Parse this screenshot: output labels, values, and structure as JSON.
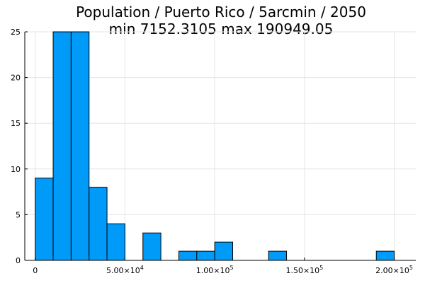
{
  "chart_data": {
    "type": "bar",
    "title": "Population / Puerto Rico / 5arcmin / 2050",
    "subtitle": "min 7152.3105  max 190949.05",
    "xlabel": "",
    "ylabel": "",
    "bin_width": 10000,
    "bins": [
      {
        "x0": 0,
        "x1": 10000,
        "count": 9
      },
      {
        "x0": 10000,
        "x1": 20000,
        "count": 25
      },
      {
        "x0": 20000,
        "x1": 30000,
        "count": 25
      },
      {
        "x0": 30000,
        "x1": 40000,
        "count": 8
      },
      {
        "x0": 40000,
        "x1": 50000,
        "count": 4
      },
      {
        "x0": 60000,
        "x1": 70000,
        "count": 3
      },
      {
        "x0": 80000,
        "x1": 90000,
        "count": 1
      },
      {
        "x0": 90000,
        "x1": 100000,
        "count": 1
      },
      {
        "x0": 100000,
        "x1": 110000,
        "count": 2
      },
      {
        "x0": 130000,
        "x1": 140000,
        "count": 1
      },
      {
        "x0": 190000,
        "x1": 200000,
        "count": 1
      }
    ],
    "xlim": [
      -5800,
      212000
    ],
    "ylim": [
      0,
      25
    ],
    "x_ticks": [
      {
        "value": 0,
        "mantissa": "0",
        "exponent": ""
      },
      {
        "value": 50000,
        "mantissa": "5.00×10",
        "exponent": "4"
      },
      {
        "value": 100000,
        "mantissa": "1.00×10",
        "exponent": "5"
      },
      {
        "value": 150000,
        "mantissa": "1.50×10",
        "exponent": "5"
      },
      {
        "value": 200000,
        "mantissa": "2.00×10",
        "exponent": "5"
      }
    ],
    "y_ticks": [
      {
        "value": 0,
        "label": "0"
      },
      {
        "value": 5,
        "label": "5"
      },
      {
        "value": 10,
        "label": "10"
      },
      {
        "value": 15,
        "label": "15"
      },
      {
        "value": 20,
        "label": "20"
      },
      {
        "value": 25,
        "label": "25"
      }
    ],
    "grid": true,
    "colors": {
      "bar": "#009af9",
      "outline": "#000000",
      "grid": "#e6e6e6"
    }
  }
}
